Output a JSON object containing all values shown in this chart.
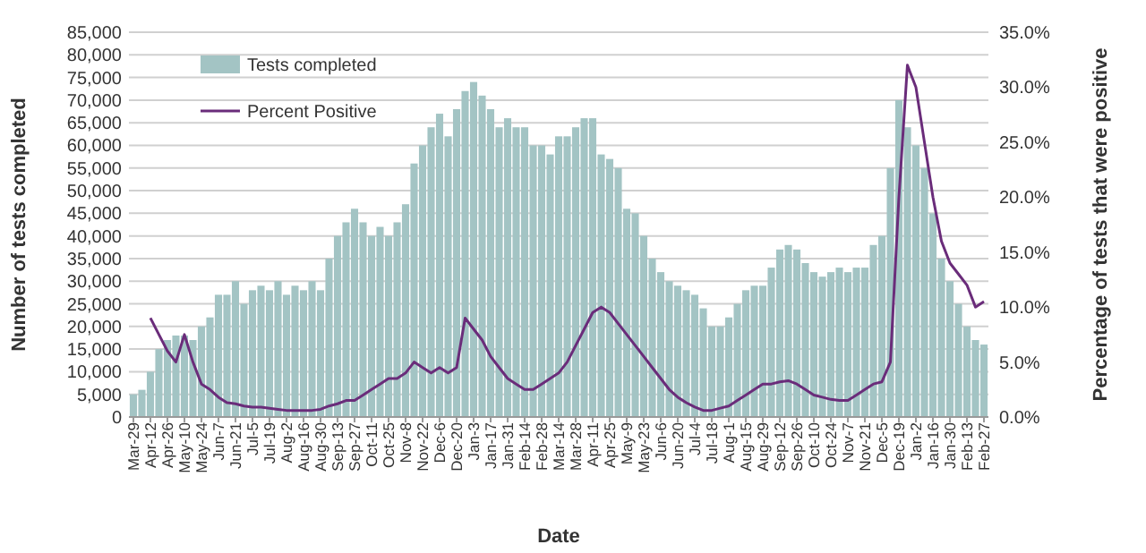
{
  "chart_data": {
    "type": "bar",
    "xlabel": "Date",
    "ylabel": "Number of tests completed",
    "y2label": "Percentage of tests that were positive",
    "categories": [
      "Mar-29",
      null,
      "Apr-12",
      null,
      "Apr-26",
      null,
      "May-10",
      null,
      "May-24",
      null,
      "Jun-7",
      null,
      "Jun-21",
      null,
      "Jul-5",
      null,
      "Jul-19",
      null,
      "Aug-2",
      null,
      "Aug-16",
      null,
      "Aug-30",
      null,
      "Sep-13",
      null,
      "Sep-27",
      null,
      "Oct-11",
      null,
      "Oct-25",
      null,
      "Nov-8",
      null,
      "Nov-22",
      null,
      "Dec-6",
      null,
      "Dec-20",
      null,
      "Jan-3",
      null,
      "Jan-17",
      null,
      "Jan-31",
      null,
      "Feb-14",
      null,
      "Feb-28",
      null,
      "Mar-14",
      null,
      "Mar-28",
      null,
      "Apr-11",
      null,
      "Apr-25",
      null,
      "May-9",
      null,
      "May-23",
      null,
      "Jun-6",
      null,
      "Jun-20",
      null,
      "Jul-4",
      null,
      "Jul-18",
      null,
      "Aug-1",
      null,
      "Aug-15",
      null,
      "Aug-29",
      null,
      "Sep-12",
      null,
      "Sep-26",
      null,
      "Oct-10",
      null,
      "Oct-24",
      null,
      "Nov-7",
      null,
      "Nov-21",
      null,
      "Dec-5",
      null,
      "Dec-19",
      null,
      "Jan-2",
      null,
      "Jan-16",
      null,
      "Jan-30",
      null,
      "Feb-13",
      null,
      "Feb-27"
    ],
    "series": [
      {
        "name": "Tests completed",
        "color": "#a3c4c4",
        "values": [
          5000,
          6000,
          10000,
          15000,
          17000,
          18000,
          18000,
          17000,
          20000,
          22000,
          27000,
          27000,
          30000,
          25000,
          28000,
          29000,
          28000,
          30000,
          27000,
          29000,
          28000,
          30000,
          28000,
          35000,
          40000,
          43000,
          46000,
          43000,
          40000,
          42000,
          40000,
          43000,
          47000,
          56000,
          60000,
          64000,
          67000,
          62000,
          68000,
          72000,
          74000,
          71000,
          68000,
          64000,
          66000,
          64000,
          64000,
          60000,
          60000,
          58000,
          62000,
          62000,
          64000,
          66000,
          66000,
          58000,
          57000,
          55000,
          46000,
          45000,
          40000,
          35000,
          32000,
          30000,
          29000,
          28000,
          27000,
          24000,
          20000,
          20000,
          22000,
          25000,
          28000,
          29000,
          29000,
          33000,
          37000,
          38000,
          37000,
          34000,
          32000,
          31000,
          32000,
          33000,
          32000,
          33000,
          33000,
          38000,
          40000,
          55000,
          70000,
          64000,
          60000,
          55000,
          45000,
          35000,
          30000,
          25000,
          20000,
          17000,
          16000
        ]
      },
      {
        "name": "Percent Positive",
        "type": "line",
        "axis": "y2",
        "color": "#6a2c7a",
        "values": [
          null,
          null,
          9,
          7.5,
          6,
          5,
          7.5,
          5,
          3,
          2.5,
          1.8,
          1.3,
          1.2,
          1.0,
          0.9,
          0.9,
          0.8,
          0.7,
          0.6,
          0.6,
          0.6,
          0.6,
          0.7,
          1.0,
          1.2,
          1.5,
          1.5,
          2.0,
          2.5,
          3.0,
          3.5,
          3.5,
          4.0,
          5.0,
          4.5,
          4.0,
          4.5,
          4.0,
          4.5,
          9.0,
          8.0,
          7.0,
          5.5,
          4.5,
          3.5,
          3.0,
          2.5,
          2.5,
          3.0,
          3.5,
          4.0,
          5.0,
          6.5,
          8.0,
          9.5,
          10,
          9.5,
          8.5,
          7.5,
          6.5,
          5.5,
          4.5,
          3.5,
          2.5,
          1.8,
          1.3,
          0.9,
          0.6,
          0.6,
          0.8,
          1.0,
          1.5,
          2.0,
          2.5,
          3.0,
          3.0,
          3.2,
          3.3,
          3.0,
          2.5,
          2.0,
          1.8,
          1.6,
          1.5,
          1.5,
          2.0,
          2.5,
          3.0,
          3.2,
          5.0,
          20,
          32,
          30,
          25,
          20,
          16,
          14,
          13,
          12,
          10,
          10.5
        ]
      }
    ],
    "ylim": [
      0,
      85000
    ],
    "yticks": [
      {
        "value": 0,
        "label": "0"
      },
      {
        "value": 5000,
        "label": "5,000"
      },
      {
        "value": 10000,
        "label": "10,000"
      },
      {
        "value": 15000,
        "label": "15,000"
      },
      {
        "value": 20000,
        "label": "20,000"
      },
      {
        "value": 25000,
        "label": "25,000"
      },
      {
        "value": 30000,
        "label": "30,000"
      },
      {
        "value": 35000,
        "label": "35,000"
      },
      {
        "value": 40000,
        "label": "40,000"
      },
      {
        "value": 45000,
        "label": "45,000"
      },
      {
        "value": 50000,
        "label": "50,000"
      },
      {
        "value": 55000,
        "label": "55,000"
      },
      {
        "value": 60000,
        "label": "60,000"
      },
      {
        "value": 65000,
        "label": "65,000"
      },
      {
        "value": 70000,
        "label": "70,000"
      },
      {
        "value": 75000,
        "label": "75,000"
      },
      {
        "value": 80000,
        "label": "80,000"
      },
      {
        "value": 85000,
        "label": "85,000"
      }
    ],
    "y2lim": [
      0,
      35
    ],
    "y2ticks": [
      {
        "value": 0,
        "label": "0.0%"
      },
      {
        "value": 5,
        "label": "5.0%"
      },
      {
        "value": 10,
        "label": "10.0%"
      },
      {
        "value": 15,
        "label": "15.0%"
      },
      {
        "value": 20,
        "label": "20.0%"
      },
      {
        "value": 25,
        "label": "25.0%"
      },
      {
        "value": 30,
        "label": "30.0%"
      },
      {
        "value": 35,
        "label": "35.0%"
      }
    ],
    "grid": "y",
    "legend": "top left",
    "line_style": "solid",
    "marker": "none"
  }
}
